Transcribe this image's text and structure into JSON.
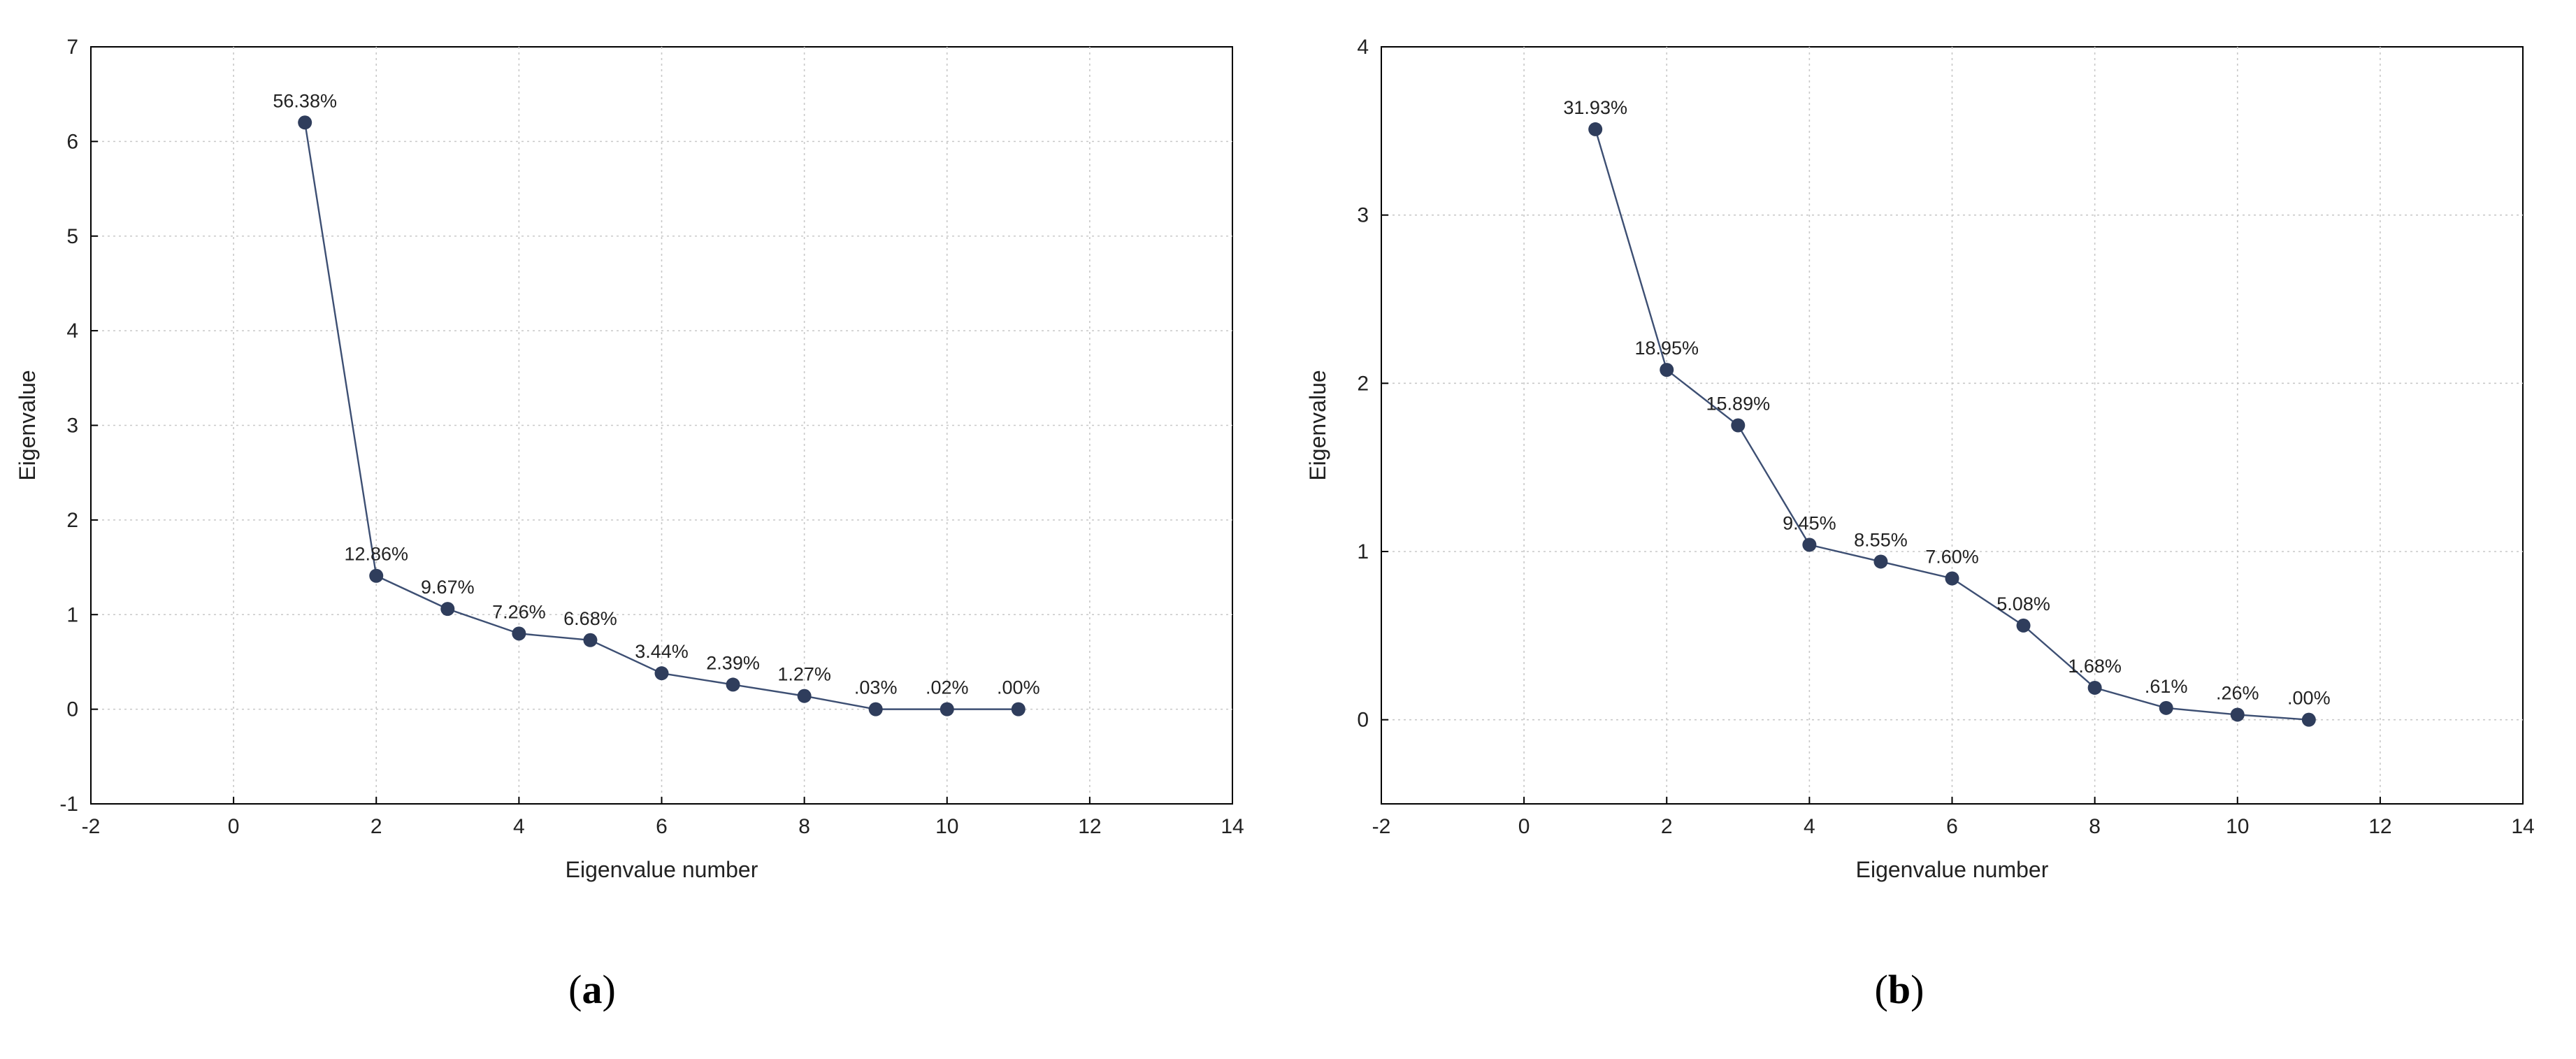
{
  "chart_data": [
    {
      "type": "line",
      "caption": "(a)",
      "caption_letter": "a",
      "xlabel": "Eigenvalue number",
      "ylabel": "Eigenvalue",
      "xlim": [
        -2,
        14
      ],
      "ylim": [
        -1,
        7
      ],
      "xticks": [
        "-2",
        "0",
        "2",
        "4",
        "6",
        "8",
        "10",
        "12",
        "14"
      ],
      "yticks": [
        "-1",
        "0",
        "1",
        "2",
        "3",
        "4",
        "5",
        "6",
        "7"
      ],
      "grid": true,
      "x": [
        1,
        2,
        3,
        4,
        5,
        6,
        7,
        8,
        9,
        10,
        11
      ],
      "series": [
        {
          "values": [
            6.2,
            1.41,
            1.06,
            0.8,
            0.73,
            0.38,
            0.26,
            0.14,
            0.0,
            0.0,
            0.0
          ],
          "labels": [
            "56.38%",
            "12.86%",
            "9.67%",
            "7.26%",
            "6.68%",
            "3.44%",
            "2.39%",
            "1.27%",
            ".03%",
            ".02%",
            ".00%"
          ]
        }
      ],
      "line_color": "#3d4f73",
      "marker_color": "#2f3d5c"
    },
    {
      "type": "line",
      "caption": "(b)",
      "caption_letter": "b",
      "xlabel": "Eigenvalue number",
      "ylabel": "Eigenvalue",
      "xlim": [
        -2,
        14
      ],
      "ylim": [
        -0.5,
        4
      ],
      "xticks": [
        "-2",
        "0",
        "2",
        "4",
        "6",
        "8",
        "10",
        "12",
        "14"
      ],
      "yticks": [
        "0",
        "1",
        "2",
        "3",
        "4"
      ],
      "grid": true,
      "x": [
        1,
        2,
        3,
        4,
        5,
        6,
        7,
        8,
        9,
        10,
        11
      ],
      "series": [
        {
          "values": [
            3.51,
            2.08,
            1.75,
            1.04,
            0.94,
            0.84,
            0.56,
            0.19,
            0.07,
            0.03,
            0.0
          ],
          "labels": [
            "31.93%",
            "18.95%",
            "15.89%",
            "9.45%",
            "8.55%",
            "7.60%",
            "5.08%",
            "1.68%",
            ".61%",
            ".26%",
            ".00%"
          ]
        }
      ],
      "line_color": "#3d4f73",
      "marker_color": "#2f3d5c"
    }
  ]
}
